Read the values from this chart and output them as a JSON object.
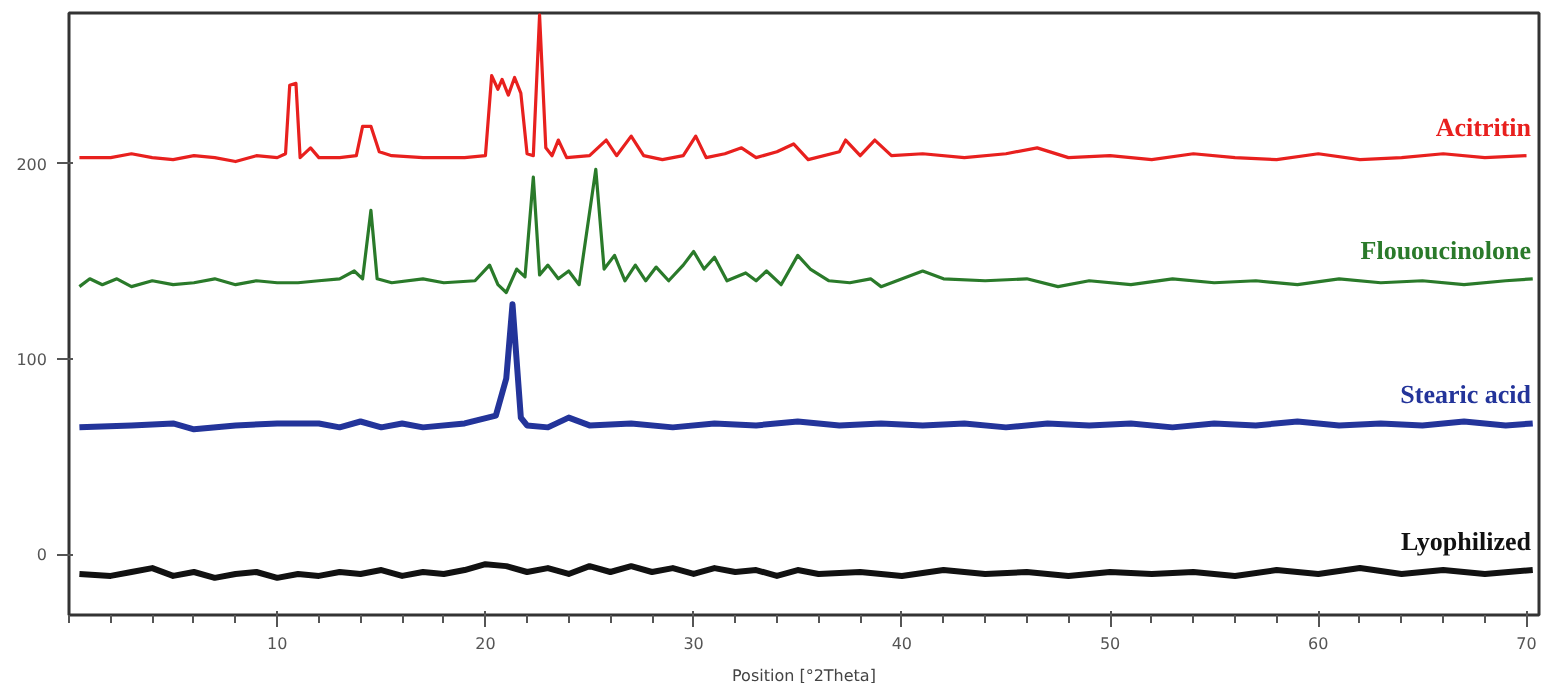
{
  "chart_data": {
    "type": "line",
    "xlabel": "Position [°2Theta]",
    "xlim": [
      0,
      70.6
    ],
    "ylim": [
      -31,
      277
    ],
    "xticks": [
      10,
      20,
      30,
      40,
      50,
      60,
      70
    ],
    "yticks": [
      0,
      100,
      200
    ],
    "grid": false,
    "marker": "none",
    "line_style": "solid",
    "series": [
      {
        "name": "Acitritin",
        "color": "#e8201e",
        "x": [
          0.5,
          2,
          3,
          4,
          5,
          6,
          7,
          8,
          9,
          10,
          10.4,
          10.6,
          10.9,
          11.1,
          11.6,
          12,
          13,
          13.8,
          14.1,
          14.5,
          14.9,
          15.5,
          17,
          19,
          20,
          20.3,
          20.6,
          20.8,
          21.1,
          21.4,
          21.7,
          22,
          22.3,
          22.6,
          22.9,
          23.2,
          23.5,
          23.9,
          25,
          25.8,
          26.3,
          27,
          27.6,
          28.5,
          29.5,
          30.1,
          30.6,
          31.5,
          32.3,
          33,
          34,
          34.8,
          35.5,
          37,
          37.3,
          38,
          38.7,
          39.5,
          41,
          43,
          45,
          46.5,
          48,
          50,
          52,
          54,
          56,
          58,
          60,
          62,
          64,
          66,
          68,
          70
        ],
        "values": [
          203,
          203,
          205,
          203,
          202,
          204,
          203,
          201,
          204,
          203,
          205,
          240,
          241,
          203,
          208,
          203,
          203,
          204,
          219,
          219,
          206,
          204,
          203,
          203,
          204,
          245,
          238,
          243,
          235,
          244,
          236,
          205,
          204,
          276,
          208,
          204,
          212,
          203,
          204,
          212,
          204,
          214,
          204,
          202,
          204,
          214,
          203,
          205,
          208,
          203,
          206,
          210,
          202,
          206,
          212,
          204,
          212,
          204,
          205,
          203,
          205,
          208,
          203,
          204,
          202,
          205,
          203,
          202,
          205,
          202,
          203,
          205,
          203,
          204
        ]
      },
      {
        "name": "Flououcinolone",
        "color": "#2a7a2a",
        "x": [
          0.5,
          1,
          1.6,
          2.3,
          3,
          4,
          5,
          6,
          7,
          8,
          9,
          10,
          11,
          12,
          13,
          13.7,
          14.1,
          14.5,
          14.8,
          15.5,
          17,
          18,
          19.5,
          20.2,
          20.6,
          21,
          21.5,
          21.9,
          22.3,
          22.6,
          23,
          23.5,
          24,
          24.5,
          25.3,
          25.7,
          26.2,
          26.7,
          27.2,
          27.7,
          28.2,
          28.8,
          29.5,
          30,
          30.5,
          31,
          31.6,
          32.5,
          33,
          33.5,
          34.2,
          35,
          35.6,
          36.5,
          37.5,
          38.5,
          39,
          41,
          42,
          44,
          46,
          47.5,
          49,
          51,
          53,
          55,
          57,
          59,
          61,
          63,
          65,
          67,
          69,
          70.3
        ],
        "values": [
          137,
          141,
          138,
          141,
          137,
          140,
          138,
          139,
          141,
          138,
          140,
          139,
          139,
          140,
          141,
          145,
          141,
          176,
          141,
          139,
          141,
          139,
          140,
          148,
          138,
          134,
          146,
          142,
          193,
          143,
          148,
          141,
          145,
          138,
          197,
          146,
          153,
          140,
          148,
          140,
          147,
          140,
          148,
          155,
          146,
          152,
          140,
          144,
          140,
          145,
          138,
          153,
          146,
          140,
          139,
          141,
          137,
          145,
          141,
          140,
          141,
          137,
          140,
          138,
          141,
          139,
          140,
          138,
          141,
          139,
          140,
          138,
          140,
          141
        ]
      },
      {
        "name": "Stearic acid",
        "color": "#23349a",
        "x": [
          0.5,
          3,
          5,
          6,
          8,
          10,
          12,
          13,
          14,
          15,
          16,
          17,
          19,
          20.5,
          21,
          21.3,
          21.7,
          22,
          23,
          24,
          25,
          27,
          29,
          31,
          33,
          35,
          37,
          39,
          41,
          43,
          45,
          47,
          49,
          51,
          53,
          55,
          57,
          59,
          61,
          63,
          65,
          67,
          69,
          70.3
        ],
        "values": [
          65,
          66,
          67,
          64,
          66,
          67,
          67,
          65,
          68,
          65,
          67,
          65,
          67,
          71,
          90,
          128,
          70,
          66,
          65,
          70,
          66,
          67,
          65,
          67,
          66,
          68,
          66,
          67,
          66,
          67,
          65,
          67,
          66,
          67,
          65,
          67,
          66,
          68,
          66,
          67,
          66,
          68,
          66,
          67
        ]
      },
      {
        "name": "Lyophilized",
        "color": "#111111",
        "x": [
          0.5,
          2,
          3,
          4,
          5,
          6,
          7,
          8,
          9,
          10,
          11,
          12,
          13,
          14,
          15,
          16,
          17,
          18,
          19,
          20,
          21,
          22,
          23,
          24,
          25,
          26,
          27,
          28,
          29,
          30,
          31,
          32,
          33,
          34,
          35,
          36,
          38,
          40,
          42,
          44,
          46,
          48,
          50,
          52,
          54,
          56,
          58,
          60,
          62,
          64,
          66,
          68,
          70.3
        ],
        "values": [
          -10,
          -11,
          -9,
          -7,
          -11,
          -9,
          -12,
          -10,
          -9,
          -12,
          -10,
          -11,
          -9,
          -10,
          -8,
          -11,
          -9,
          -10,
          -8,
          -5,
          -6,
          -9,
          -7,
          -10,
          -6,
          -9,
          -6,
          -9,
          -7,
          -10,
          -7,
          -9,
          -8,
          -11,
          -8,
          -10,
          -9,
          -11,
          -8,
          -10,
          -9,
          -11,
          -9,
          -10,
          -9,
          -11,
          -8,
          -10,
          -7,
          -10,
          -8,
          -10,
          -8
        ]
      }
    ]
  }
}
